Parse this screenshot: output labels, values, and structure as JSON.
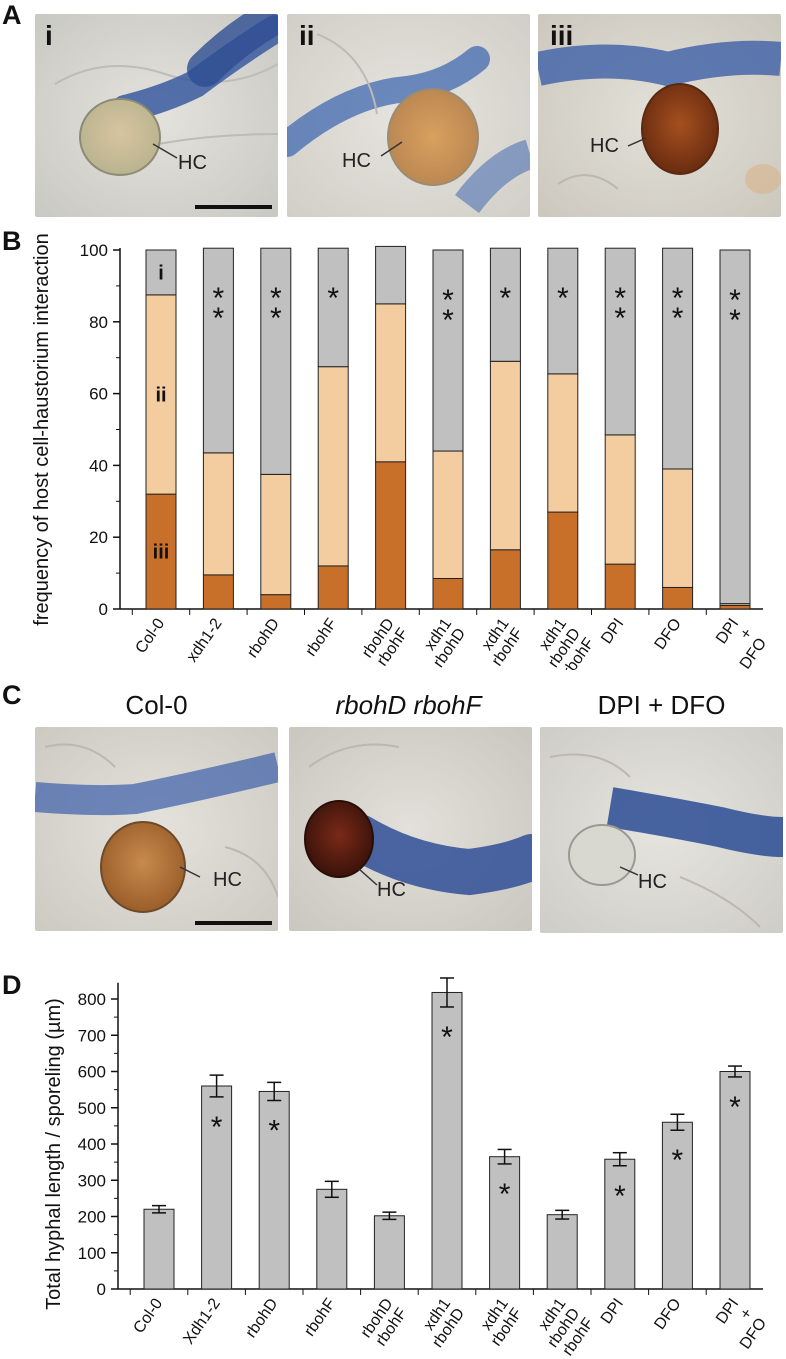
{
  "panels": {
    "a": "A",
    "b": "B",
    "c": "C",
    "d": "D"
  },
  "panel_a": {
    "images": [
      {
        "label": "i",
        "hc": "HC"
      },
      {
        "label": "ii",
        "hc": "HC"
      },
      {
        "label": "iii",
        "hc": "HC"
      }
    ]
  },
  "panel_c": {
    "images": [
      {
        "title": "Col-0",
        "hc": "HC"
      },
      {
        "title": "rbohD rbohF",
        "hc": "HC"
      },
      {
        "title": "DPI + DFO",
        "hc": "HC"
      }
    ]
  },
  "colors": {
    "cat_i": "#c0c0c0",
    "cat_ii": "#f3cda0",
    "cat_iii": "#c8702a",
    "bar_d": "#c0c0c0"
  },
  "chart_data": [
    {
      "type": "bar",
      "stacked": true,
      "ylabel": "frequency of host cell-haustorium interaction",
      "ylim": [
        0,
        100
      ],
      "yticks": [
        0,
        20,
        40,
        60,
        80,
        100
      ],
      "categories": [
        "Col-0",
        "xdh1-2",
        "rbohD",
        "rbohF",
        "rbohD rbohF",
        "xdh1 rbohD",
        "xdh1 rbohF",
        "xdh1 rbohD rbohF",
        "DPI",
        "DFO",
        "DPI + DFO"
      ],
      "series": [
        {
          "name": "iii",
          "values": [
            32,
            9.5,
            4,
            12,
            41,
            8.5,
            16.5,
            27,
            12.5,
            6,
            1
          ]
        },
        {
          "name": "ii",
          "values": [
            55.5,
            34,
            33.5,
            55.5,
            44,
            35.5,
            52.5,
            38.5,
            36,
            33,
            0.5
          ]
        },
        {
          "name": "i",
          "values": [
            12.5,
            57,
            63,
            33,
            16,
            56,
            31.5,
            35,
            52,
            61.5,
            98.5
          ]
        }
      ],
      "significance": [
        "",
        "**",
        "**",
        "*",
        "",
        "**",
        "*",
        "*",
        "**",
        "**",
        "**"
      ]
    },
    {
      "type": "bar",
      "ylabel": "Total hyphal length / sporeling (µm)",
      "ylim": [
        0,
        900
      ],
      "yticks": [
        0,
        100,
        200,
        300,
        400,
        500,
        600,
        700,
        800
      ],
      "categories": [
        "Col-0",
        "Xdh1-2",
        "rbohD",
        "rbohF",
        "rbohD rbohF",
        "xdh1 rbohD",
        "xdh1 rbohF",
        "xdh1 rbohD rbohF",
        "DPI",
        "DFO",
        "DPI + DFO"
      ],
      "values": [
        220,
        560,
        545,
        275,
        202,
        818,
        365,
        205,
        358,
        460,
        600
      ],
      "errors": [
        10,
        30,
        25,
        22,
        10,
        40,
        20,
        12,
        18,
        22,
        15
      ],
      "significance": [
        "",
        "*",
        "*",
        "",
        "",
        "*",
        "*",
        "",
        "*",
        "*",
        "*"
      ]
    }
  ]
}
